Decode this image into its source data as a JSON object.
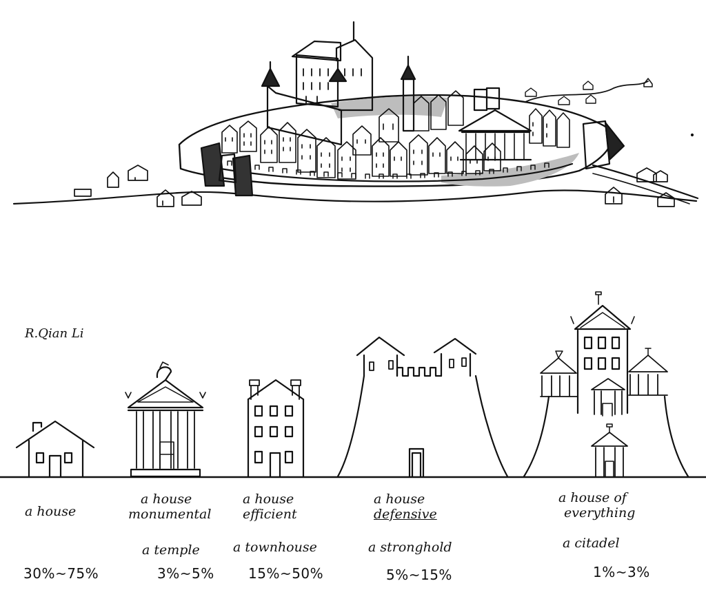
{
  "author_signature": "R.Qian Li",
  "colors": {
    "ink": "#111111",
    "shade": "#bdbdbd",
    "paper": "#ffffff"
  },
  "buildings": [
    {
      "label_line1": "a house",
      "label_line2": "",
      "alt_name": "",
      "percentage": "30%~75%"
    },
    {
      "label_line1": "a house",
      "label_line2": "monumental",
      "alt_name": "a temple",
      "percentage": "3%~5%"
    },
    {
      "label_line1": "a house",
      "label_line2": "efficient",
      "alt_name": "a townhouse",
      "percentage": "15%~50%"
    },
    {
      "label_line1": "a house",
      "label_line2": "defensive",
      "alt_name": "a stronghold",
      "percentage": "5%~15%"
    },
    {
      "label_line1": "a house of",
      "label_line2": "everything",
      "alt_name": "a citadel",
      "percentage": "1%~3%"
    }
  ]
}
